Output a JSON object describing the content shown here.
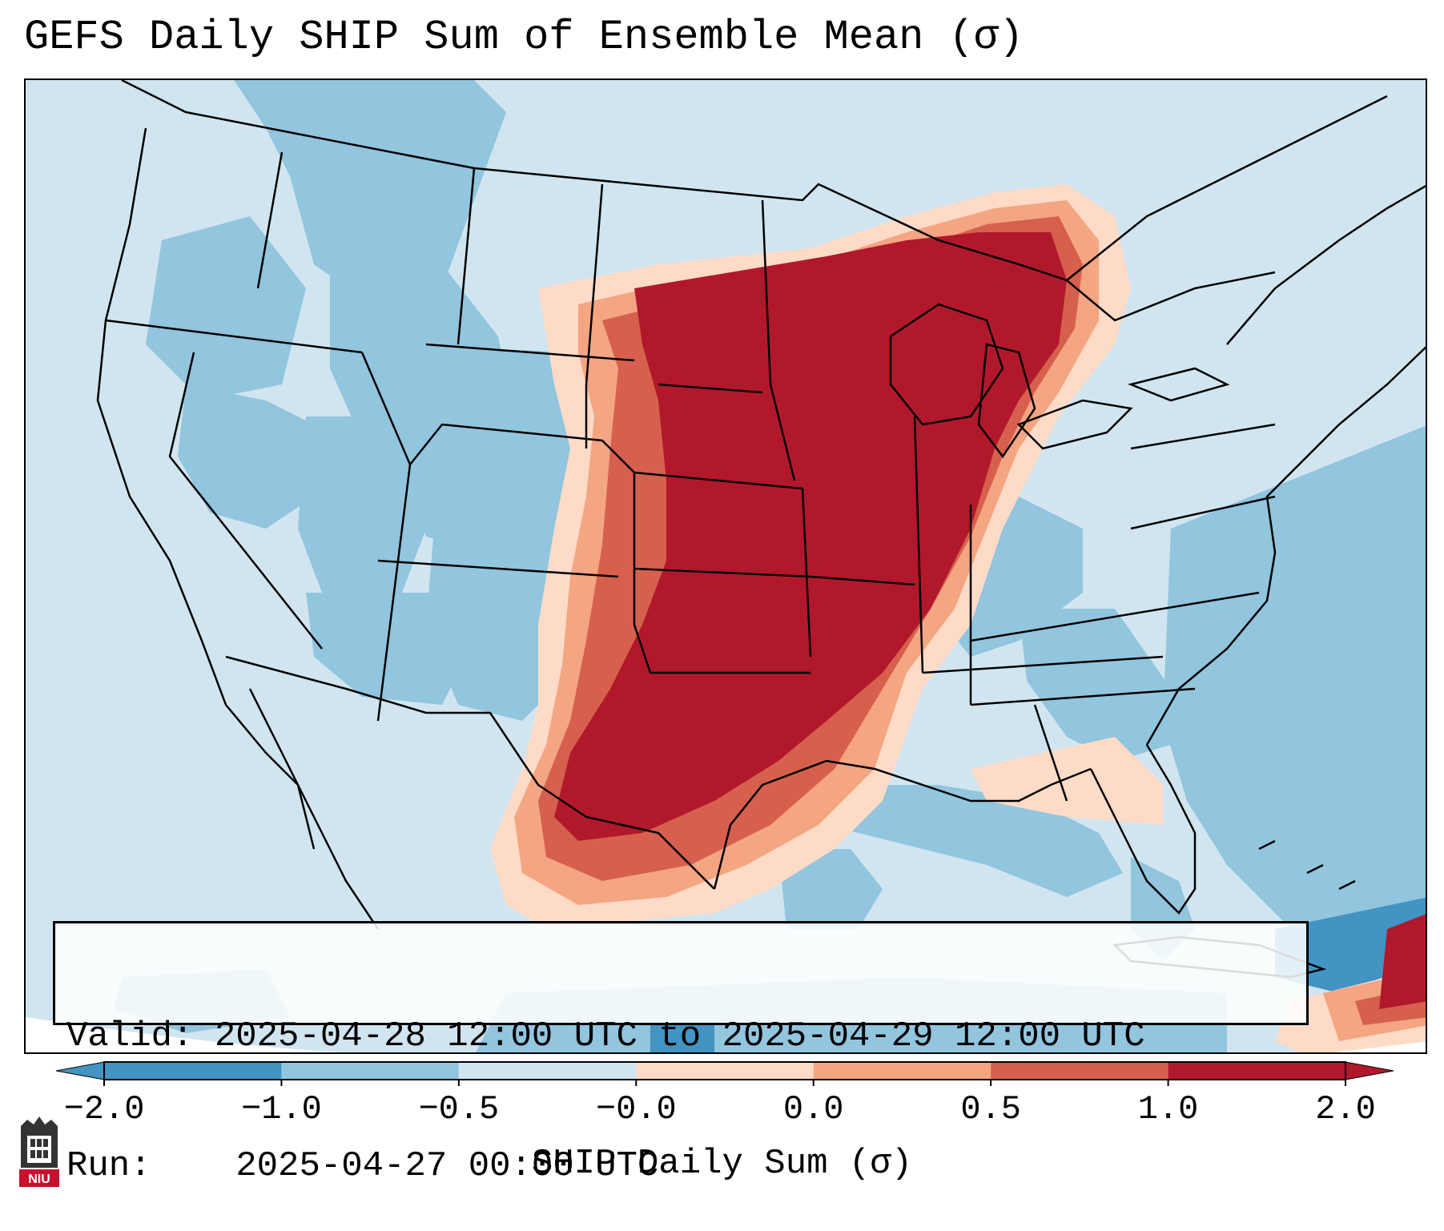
{
  "title": "GEFS Daily SHIP Sum of Ensemble Mean (σ)",
  "info": {
    "valid_label": "Valid:",
    "valid_value": "2025-04-28 12:00 UTC to 2025-04-29 12:00 UTC",
    "run_label": "Run:",
    "run_value": "2025-04-27 00:00 UTC"
  },
  "colorbar": {
    "label": "SHIP Daily Sum (σ)",
    "ticks": [
      "−2.0",
      "−1.0",
      "−0.5",
      "−0.0",
      "0.0",
      "0.5",
      "1.0",
      "2.0"
    ],
    "colors": [
      "#4393c3",
      "#92c5de",
      "#d1e5f0",
      "#fddbc7",
      "#f4a582",
      "#d6604d",
      "#b2182b"
    ],
    "extend": "both"
  },
  "palette": {
    "strong_neg": "#4393c3",
    "neg": "#92c5de",
    "weak_neg": "#d1e5f0",
    "weak_pos": "#fddbc7",
    "pos": "#f4a582",
    "strong_pos": "#d6604d",
    "max_pos": "#b2182b"
  },
  "logo": {
    "text": "NIU",
    "icon": "niu-logo-icon"
  }
}
